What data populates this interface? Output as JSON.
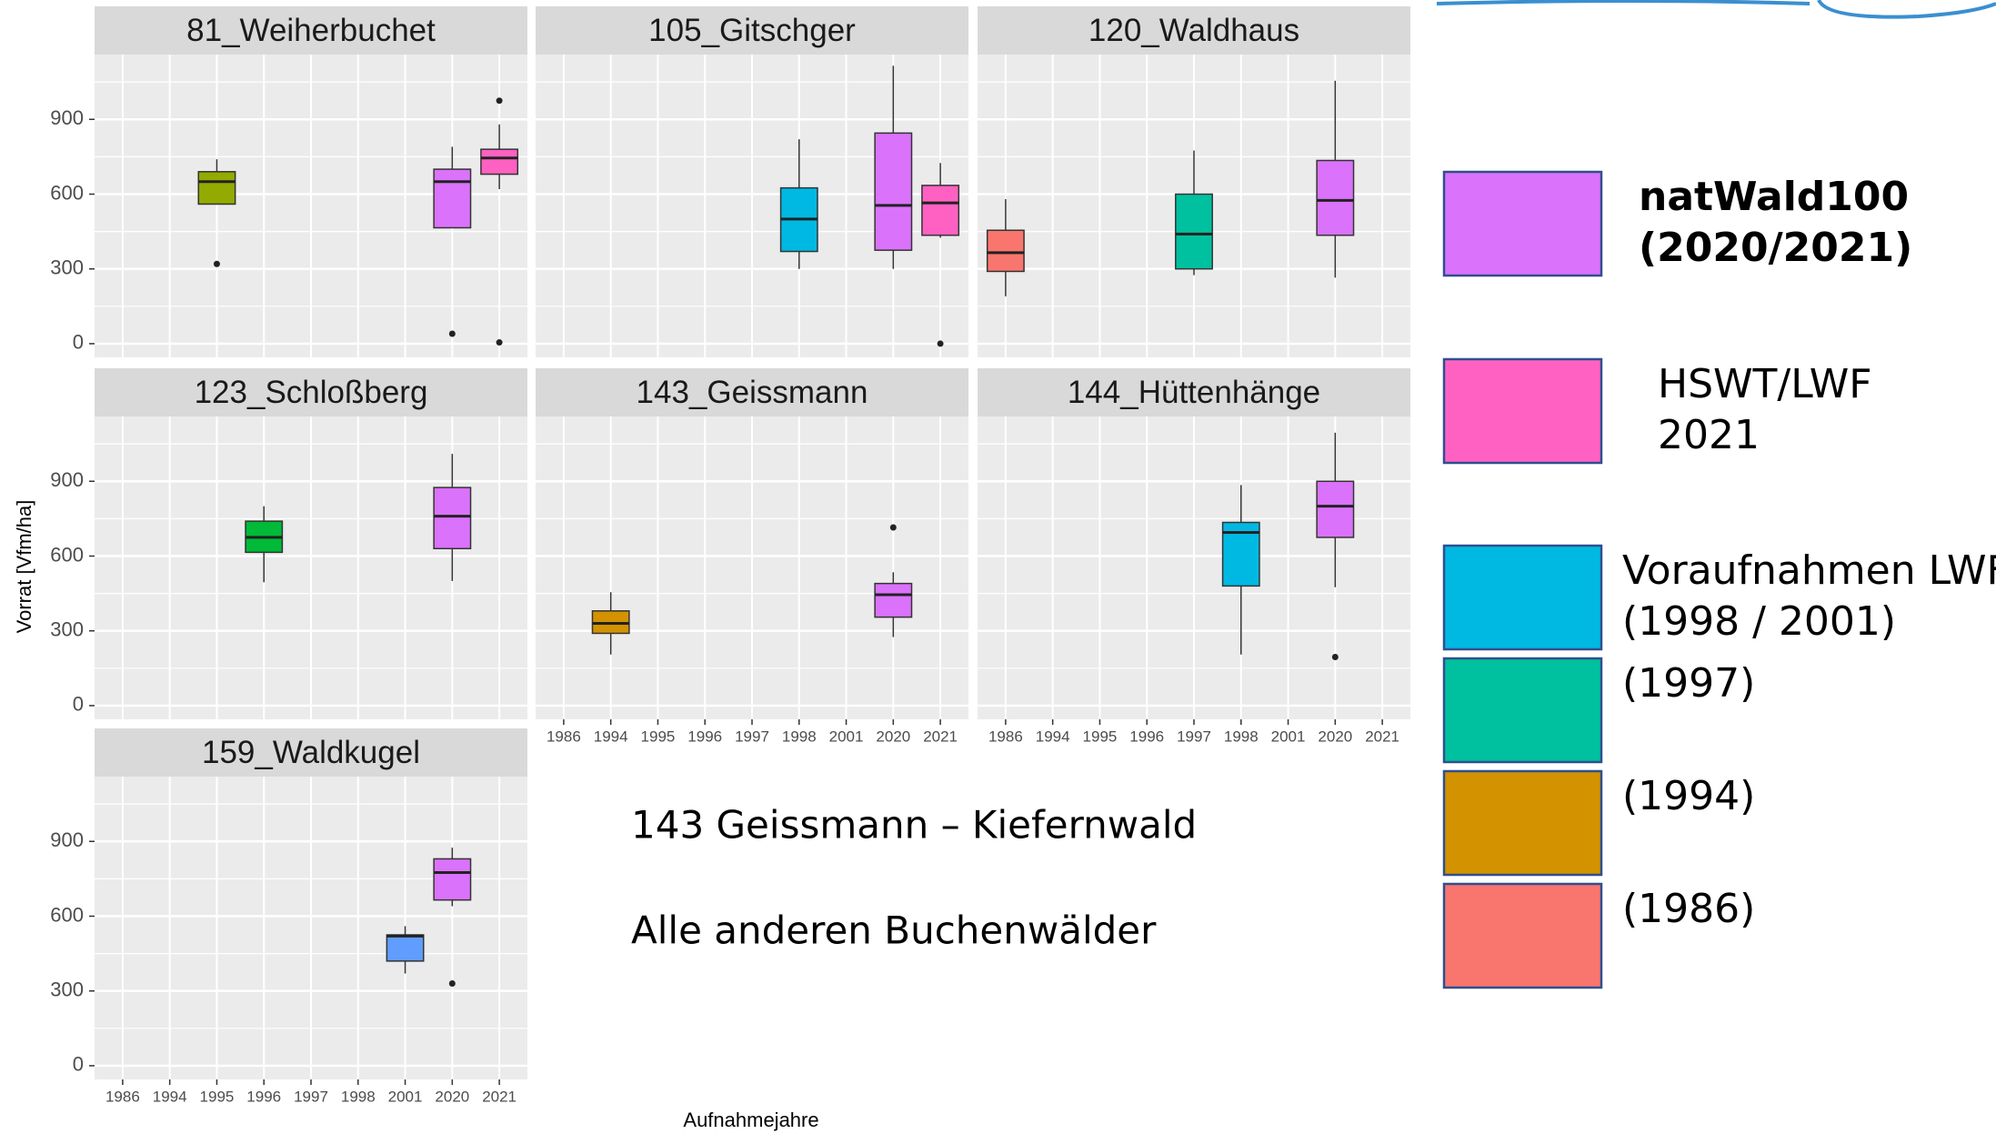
{
  "chart_data": {
    "type": "box",
    "y_label": "Vorrat [Vfm/ha]",
    "x_label": "Aufnahmejahre",
    "categories": [
      "1986",
      "1994",
      "1995",
      "1996",
      "1997",
      "1998",
      "2001",
      "2020",
      "2021"
    ],
    "ylim": [
      -55,
      1160
    ],
    "yticks": [
      0,
      300,
      600,
      900
    ],
    "grid": true,
    "panels": [
      {
        "title": "81_Weiherbuchet",
        "show_xticks": false,
        "show_yticks": true,
        "boxes": [
          {
            "category": "1995",
            "color": "#93AA00",
            "min": 560,
            "q1": 560,
            "median": 650,
            "q3": 690,
            "max": 740,
            "outliers": [
              320
            ]
          },
          {
            "category": "2020",
            "color": "#DB72FB",
            "min": 465,
            "q1": 465,
            "median": 650,
            "q3": 700,
            "max": 790,
            "outliers": [
              40
            ]
          },
          {
            "category": "2021",
            "color": "#FF61C3",
            "min": 620,
            "q1": 680,
            "median": 745,
            "q3": 780,
            "max": 880,
            "outliers": [
              975,
              5
            ]
          }
        ]
      },
      {
        "title": "105_Gitschger",
        "show_xticks": false,
        "show_yticks": false,
        "boxes": [
          {
            "category": "1998",
            "color": "#00B9E3",
            "min": 300,
            "q1": 370,
            "median": 500,
            "q3": 625,
            "max": 820,
            "outliers": []
          },
          {
            "category": "2020",
            "color": "#DB72FB",
            "min": 300,
            "q1": 375,
            "median": 555,
            "q3": 845,
            "max": 1115,
            "outliers": []
          },
          {
            "category": "2021",
            "color": "#FF61C3",
            "min": 425,
            "q1": 435,
            "median": 565,
            "q3": 635,
            "max": 725,
            "outliers": [
              0
            ]
          }
        ]
      },
      {
        "title": "120_Waldhaus",
        "show_xticks": false,
        "show_yticks": false,
        "boxes": [
          {
            "category": "1986",
            "color": "#F8766D",
            "min": 190,
            "q1": 290,
            "median": 365,
            "q3": 455,
            "max": 580,
            "outliers": []
          },
          {
            "category": "1997",
            "color": "#00C19F",
            "min": 275,
            "q1": 300,
            "median": 440,
            "q3": 600,
            "max": 775,
            "outliers": []
          },
          {
            "category": "2020",
            "color": "#DB72FB",
            "min": 265,
            "q1": 435,
            "median": 575,
            "q3": 735,
            "max": 1055,
            "outliers": []
          }
        ]
      },
      {
        "title": "123_Schloßberg",
        "show_xticks": false,
        "show_yticks": true,
        "boxes": [
          {
            "category": "1996",
            "color": "#00BA38",
            "min": 495,
            "q1": 615,
            "median": 675,
            "q3": 740,
            "max": 800,
            "outliers": []
          },
          {
            "category": "2020",
            "color": "#DB72FB",
            "min": 500,
            "q1": 630,
            "median": 760,
            "q3": 875,
            "max": 1010,
            "outliers": []
          }
        ]
      },
      {
        "title": "143_Geissmann",
        "show_xticks": true,
        "show_yticks": false,
        "boxes": [
          {
            "category": "1994",
            "color": "#D39200",
            "min": 205,
            "q1": 290,
            "median": 330,
            "q3": 380,
            "max": 455,
            "outliers": []
          },
          {
            "category": "2020",
            "color": "#DB72FB",
            "min": 275,
            "q1": 355,
            "median": 445,
            "q3": 490,
            "max": 535,
            "outliers": [
              715
            ]
          }
        ]
      },
      {
        "title": "144_Hüttenhänge",
        "show_xticks": true,
        "show_yticks": false,
        "boxes": [
          {
            "category": "1998",
            "color": "#00B9E3",
            "min": 205,
            "q1": 480,
            "median": 695,
            "q3": 735,
            "max": 885,
            "outliers": []
          },
          {
            "category": "2020",
            "color": "#DB72FB",
            "min": 475,
            "q1": 675,
            "median": 800,
            "q3": 900,
            "max": 1095,
            "outliers": [
              195
            ]
          }
        ]
      },
      {
        "title": "159_Waldkugel",
        "show_xticks": true,
        "show_yticks": true,
        "boxes": [
          {
            "category": "2001",
            "color": "#619CFF",
            "min": 370,
            "q1": 420,
            "median": 520,
            "q3": 525,
            "max": 560,
            "outliers": []
          },
          {
            "category": "2020",
            "color": "#DB72FB",
            "min": 640,
            "q1": 665,
            "median": 775,
            "q3": 830,
            "max": 875,
            "outliers": [
              330
            ]
          }
        ]
      }
    ],
    "annotations": [
      "143 Geissmann – Kiefernwald",
      "Alle anderen Buchenwälder"
    ],
    "legend": [
      {
        "lines": [
          "natWald100",
          "(2020/2021)"
        ],
        "color": "#DB72FB",
        "bold": true
      },
      {
        "lines": [
          "HSWT/LWF",
          "2021"
        ],
        "color": "#FF61C3",
        "bold": false
      },
      {
        "lines": [
          "Voraufnahmen LWF",
          "(1998 / 2001)"
        ],
        "color": "#00B9E3",
        "bold": false
      },
      {
        "lines": [
          "(1997)"
        ],
        "color": "#00C19F",
        "bold": false
      },
      {
        "lines": [
          "(1994)"
        ],
        "color": "#D39200",
        "bold": false
      },
      {
        "lines": [
          "(1986)"
        ],
        "color": "#F8766D",
        "bold": false
      }
    ]
  }
}
